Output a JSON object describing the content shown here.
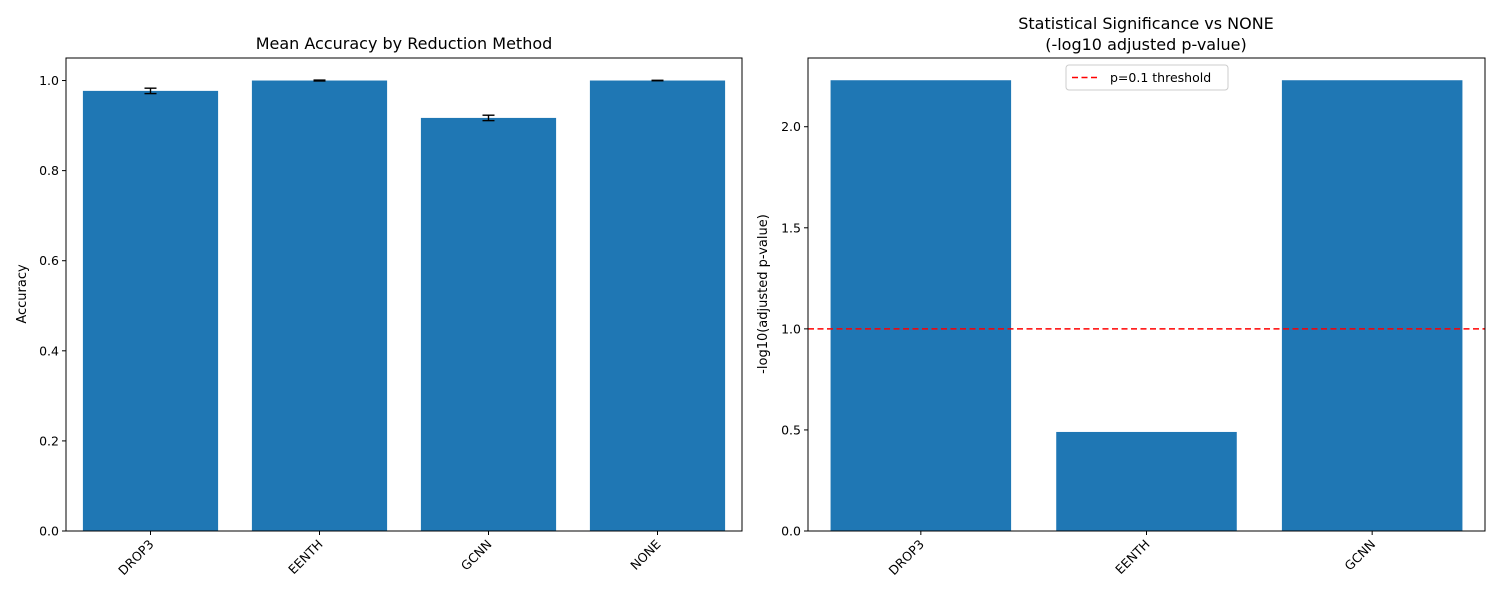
{
  "chart_data": [
    {
      "type": "bar",
      "title": "Mean Accuracy by Reduction Method",
      "xlabel": "",
      "ylabel": "Accuracy",
      "categories": [
        "DROP3",
        "EENTH",
        "GCNN",
        "NONE"
      ],
      "values": [
        0.977,
        1.0,
        0.917,
        1.0
      ],
      "error": [
        0.006,
        0.001,
        0.006,
        0.0005
      ],
      "ylim": [
        0,
        1.05
      ],
      "yticks": [
        0.0,
        0.2,
        0.4,
        0.6,
        0.8,
        1.0
      ],
      "ytick_labels": [
        "0.0",
        "0.2",
        "0.4",
        "0.6",
        "0.8",
        "1.0"
      ],
      "bar_color": "#1f77b4",
      "grid": false
    },
    {
      "type": "bar",
      "title": "Statistical Significance vs NONE",
      "subtitle": "(-log10 adjusted p-value)",
      "xlabel": "",
      "ylabel": "-log10(adjusted p-value)",
      "categories": [
        "DROP3",
        "EENTH",
        "GCNN"
      ],
      "values": [
        2.23,
        0.49,
        2.23
      ],
      "ylim": [
        0,
        2.34
      ],
      "yticks": [
        0.0,
        0.5,
        1.0,
        1.5,
        2.0
      ],
      "ytick_labels": [
        "0.0",
        "0.5",
        "1.0",
        "1.5",
        "2.0"
      ],
      "threshold": {
        "value": 1.0,
        "label": "p=0.1 threshold",
        "color": "#ff0000"
      },
      "legend_placement": "top-center",
      "bar_color": "#1f77b4",
      "grid": false
    }
  ]
}
